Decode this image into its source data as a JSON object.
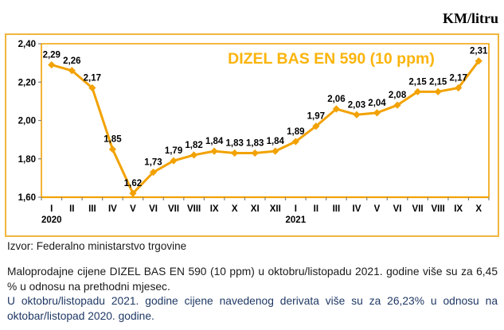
{
  "header": {
    "unit_label": "KM/litru"
  },
  "chart_data": {
    "type": "line",
    "title": "DIZEL BAS EN 590 (10 ppm)",
    "unit": "KM/litru",
    "categories": [
      "I",
      "II",
      "III",
      "IV",
      "V",
      "VI",
      "VII",
      "VIII",
      "IX",
      "X",
      "XI",
      "XII",
      "I",
      "II",
      "III",
      "IV",
      "V",
      "VI",
      "VII",
      "VIII",
      "IX",
      "X"
    ],
    "year_markers": [
      {
        "index": 0,
        "label": "2020"
      },
      {
        "index": 12,
        "label": "2021"
      }
    ],
    "values": [
      2.29,
      2.26,
      2.17,
      1.85,
      1.62,
      1.73,
      1.79,
      1.82,
      1.84,
      1.83,
      1.83,
      1.84,
      1.89,
      1.97,
      2.06,
      2.03,
      2.04,
      2.08,
      2.15,
      2.15,
      2.17,
      2.31
    ],
    "value_labels": [
      "2,29",
      "2,26",
      "2,17",
      "1,85",
      "1,62",
      "1,73",
      "1,79",
      "1,82",
      "1,84",
      "1,83",
      "1,83",
      "1,84",
      "1,89",
      "1,97",
      "2,06",
      "2,03",
      "2,04",
      "2,08",
      "2,15",
      "2,15",
      "2,17",
      "2,31"
    ],
    "y_tick_labels": [
      "2,40",
      "2,20",
      "2,00",
      "1,80",
      "1,60"
    ],
    "y_tick_values": [
      2.4,
      2.2,
      2.0,
      1.8,
      1.6
    ],
    "ylim": [
      1.6,
      2.4
    ],
    "grid": false,
    "legend": "none",
    "line_color": "#F2A202",
    "marker": "diamond",
    "title_color": "#FBB40C",
    "axis_color": "#F2A202",
    "tick_color": "#808080",
    "label_color": "#000000"
  },
  "source_line": "Izvor: Federalno ministarstvo trgovine",
  "commentary": {
    "paragraph1": "Maloprodajne cijene DIZEL BAS EN 590 (10 ppm) u oktobru/listopadu 2021. godine više su za 6,45 % u odnosu na prethodni mjesec.",
    "paragraph2": "U oktobru/listopadu 2021. godine cijene navedenog derivata više su za 26,23% u odnosu na oktobar/listopad 2020. godine.",
    "paragraph2_color": "#1F3864"
  }
}
